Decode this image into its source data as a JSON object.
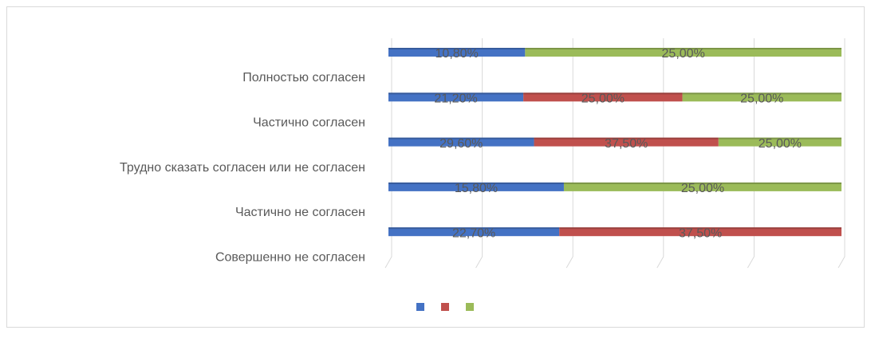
{
  "chart_data": {
    "type": "bar",
    "orientation": "horizontal",
    "stacked": "percent",
    "categories": [
      "Полностью согласен",
      "Частично согласен",
      "Трудно сказать согласен или не согласен",
      "Частично не согласен",
      "Совершенно не согласен"
    ],
    "series": [
      {
        "color": "#4472c4",
        "values": [
          10.8,
          21.2,
          29.6,
          15.8,
          22.7
        ],
        "value_labels": [
          "10,80%",
          "21,20%",
          "29,60%",
          "15,80%",
          "22,70%"
        ]
      },
      {
        "color": "#c0504d",
        "values": [
          null,
          25.0,
          37.5,
          null,
          37.5
        ],
        "value_labels": [
          null,
          "25,00%",
          "37,50%",
          null,
          "37,50%"
        ]
      },
      {
        "color": "#9bbb59",
        "values": [
          25.0,
          25.0,
          25.0,
          25.0,
          null
        ],
        "value_labels": [
          "25,00%",
          "25,00%",
          "25,00%",
          "25,00%",
          null
        ]
      }
    ],
    "xlim": [
      0,
      100
    ],
    "xticks": [
      0,
      20,
      40,
      60,
      80,
      100
    ],
    "tick_labels": false,
    "grid": true,
    "legend": "bottom"
  }
}
